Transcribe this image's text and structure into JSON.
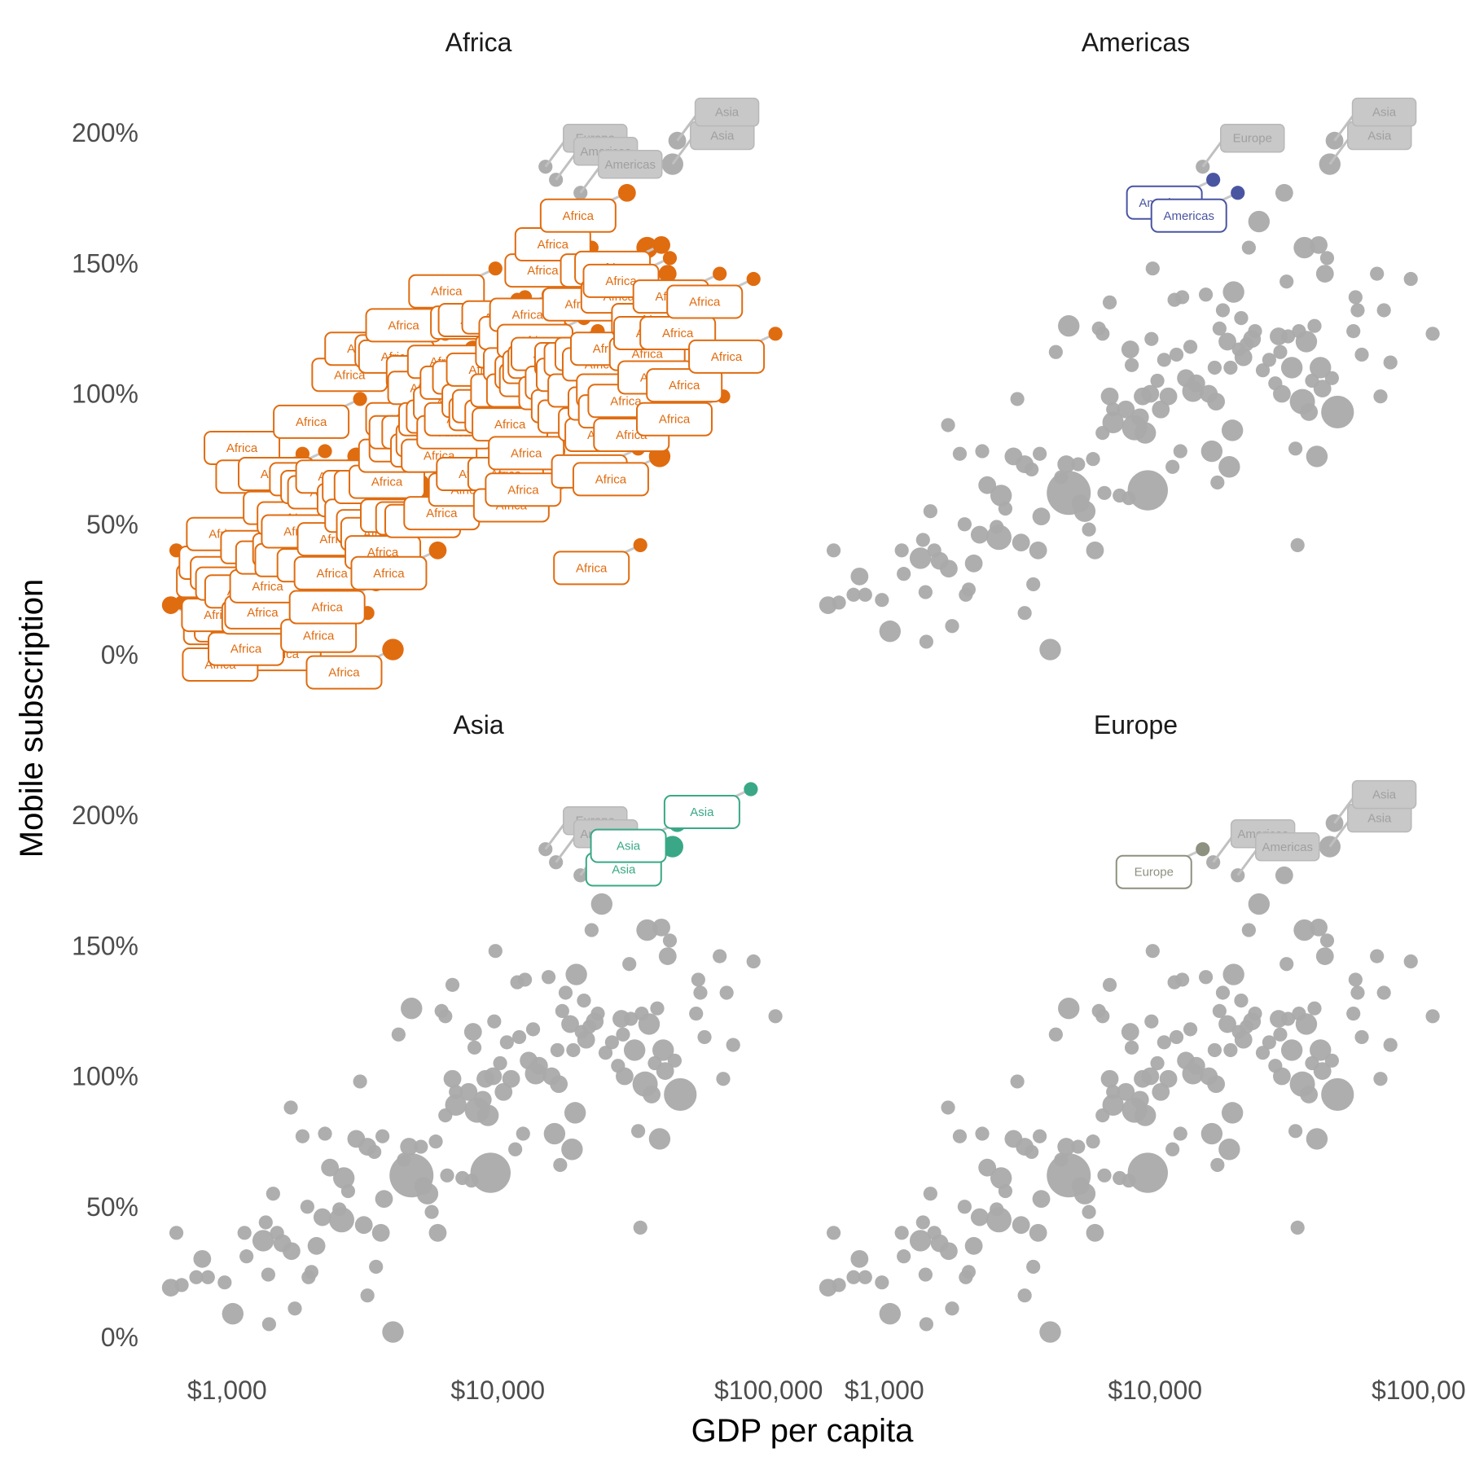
{
  "chart_data": {
    "type": "scatter",
    "title": "",
    "xlabel": "GDP per capita",
    "ylabel": "Mobile subscription",
    "xscale": "log",
    "xlim": [
      600,
      120000
    ],
    "ylim": [
      -5,
      215
    ],
    "x_ticks": [
      {
        "value": 1000,
        "label": "$1,000"
      },
      {
        "value": 10000,
        "label": "$10,000"
      },
      {
        "value": 100000,
        "label": "$100,000"
      }
    ],
    "y_ticks": [
      {
        "value": 0,
        "label": "0%"
      },
      {
        "value": 50,
        "label": "50%"
      },
      {
        "value": 100,
        "label": "100%"
      },
      {
        "value": 150,
        "label": "150%"
      },
      {
        "value": 200,
        "label": "200%"
      }
    ],
    "grid": false,
    "legend": "none",
    "colors": {
      "background_points": "#aaaaaa",
      "label_box_fill": "#c8c8c8",
      "label_box_stroke": "#b8b8b8",
      "label_text_muted": "#a0a0a0",
      "Africa": "#e06c10",
      "Americas": "#4a55a2",
      "Asia": "#3aa886",
      "Europe": "#8d9180"
    },
    "panels": [
      "Africa",
      "Americas",
      "Asia",
      "Europe"
    ],
    "highlight_labels": {
      "Africa": "Africa",
      "Americas": "Americas",
      "Asia": "Asia",
      "Europe": "Europe"
    },
    "points": [
      {
        "x": 620,
        "y": 19,
        "size": 3,
        "region": "Africa"
      },
      {
        "x": 680,
        "y": 20,
        "size": 2,
        "region": "Africa"
      },
      {
        "x": 650,
        "y": 40,
        "size": 2,
        "region": "Africa"
      },
      {
        "x": 770,
        "y": 23,
        "size": 2,
        "region": "Africa"
      },
      {
        "x": 850,
        "y": 23,
        "size": 2,
        "region": "Africa"
      },
      {
        "x": 810,
        "y": 30,
        "size": 3,
        "region": "Africa"
      },
      {
        "x": 980,
        "y": 21,
        "size": 2,
        "region": "Africa"
      },
      {
        "x": 1050,
        "y": 9,
        "size": 4,
        "region": "Africa"
      },
      {
        "x": 1160,
        "y": 40,
        "size": 2,
        "region": "Africa"
      },
      {
        "x": 1180,
        "y": 31,
        "size": 2,
        "region": "Africa"
      },
      {
        "x": 1360,
        "y": 37,
        "size": 4,
        "region": "Africa"
      },
      {
        "x": 1390,
        "y": 44,
        "size": 2,
        "region": "Africa"
      },
      {
        "x": 1420,
        "y": 24,
        "size": 2,
        "region": "Africa"
      },
      {
        "x": 1430,
        "y": 5,
        "size": 2,
        "region": "Africa"
      },
      {
        "x": 1480,
        "y": 55,
        "size": 2,
        "region": "Africa"
      },
      {
        "x": 1530,
        "y": 40,
        "size": 2,
        "region": "Africa"
      },
      {
        "x": 1600,
        "y": 36,
        "size": 3,
        "region": "Africa"
      },
      {
        "x": 1720,
        "y": 88,
        "size": 2,
        "region": "Africa"
      },
      {
        "x": 1730,
        "y": 33,
        "size": 3,
        "region": "Africa"
      },
      {
        "x": 1780,
        "y": 11,
        "size": 2,
        "region": "Africa"
      },
      {
        "x": 1900,
        "y": 77,
        "size": 2,
        "region": "Africa"
      },
      {
        "x": 1980,
        "y": 50,
        "size": 2,
        "region": "Africa"
      },
      {
        "x": 2000,
        "y": 23,
        "size": 2,
        "region": "Africa"
      },
      {
        "x": 2050,
        "y": 25,
        "size": 2,
        "region": "Africa"
      },
      {
        "x": 2140,
        "y": 35,
        "size": 3,
        "region": "Africa"
      },
      {
        "x": 2250,
        "y": 46,
        "size": 3,
        "region": "Africa"
      },
      {
        "x": 2300,
        "y": 78,
        "size": 2,
        "region": "Africa"
      },
      {
        "x": 2400,
        "y": 65,
        "size": 3,
        "region": "Africa"
      },
      {
        "x": 2600,
        "y": 49,
        "size": 2,
        "region": "Africa"
      },
      {
        "x": 2650,
        "y": 45,
        "size": 5,
        "region": "Africa"
      },
      {
        "x": 2700,
        "y": 61,
        "size": 4,
        "region": "Africa"
      },
      {
        "x": 2800,
        "y": 56,
        "size": 2,
        "region": "Africa"
      },
      {
        "x": 3000,
        "y": 76,
        "size": 3,
        "region": "Africa"
      },
      {
        "x": 3100,
        "y": 98,
        "size": 2,
        "region": "Africa"
      },
      {
        "x": 3200,
        "y": 43,
        "size": 3,
        "region": "Africa"
      },
      {
        "x": 3300,
        "y": 73,
        "size": 3,
        "region": "Africa"
      },
      {
        "x": 3300,
        "y": 16,
        "size": 2,
        "region": "Africa"
      },
      {
        "x": 3500,
        "y": 71,
        "size": 2,
        "region": "Africa"
      },
      {
        "x": 3550,
        "y": 27,
        "size": 2,
        "region": "Africa"
      },
      {
        "x": 3700,
        "y": 40,
        "size": 3,
        "region": "Africa"
      },
      {
        "x": 3750,
        "y": 77,
        "size": 2,
        "region": "Africa"
      },
      {
        "x": 3800,
        "y": 53,
        "size": 3,
        "region": "Africa"
      },
      {
        "x": 4100,
        "y": 2,
        "size": 4,
        "region": "Africa"
      },
      {
        "x": 4300,
        "y": 116,
        "size": 2,
        "region": "Africa"
      },
      {
        "x": 4500,
        "y": 68,
        "size": 2,
        "region": "Africa"
      },
      {
        "x": 4700,
        "y": 73,
        "size": 3,
        "region": "Africa"
      },
      {
        "x": 4800,
        "y": 126,
        "size": 4,
        "region": "Africa"
      },
      {
        "x": 4800,
        "y": 62,
        "size": 10,
        "region": "Africa"
      },
      {
        "x": 5200,
        "y": 73,
        "size": 2,
        "region": "Africa"
      },
      {
        "x": 5300,
        "y": 58,
        "size": 3,
        "region": "Africa"
      },
      {
        "x": 5500,
        "y": 55,
        "size": 4,
        "region": "Africa"
      },
      {
        "x": 5700,
        "y": 48,
        "size": 2,
        "region": "Africa"
      },
      {
        "x": 5900,
        "y": 75,
        "size": 2,
        "region": "Africa"
      },
      {
        "x": 6000,
        "y": 40,
        "size": 3,
        "region": "Africa"
      },
      {
        "x": 6200,
        "y": 125,
        "size": 2,
        "region": "Africa"
      },
      {
        "x": 6400,
        "y": 85,
        "size": 2,
        "region": "Africa"
      },
      {
        "x": 6400,
        "y": 123,
        "size": 2,
        "region": "Africa"
      },
      {
        "x": 6500,
        "y": 62,
        "size": 2,
        "region": "Africa"
      },
      {
        "x": 6800,
        "y": 135,
        "size": 2,
        "region": "Africa"
      },
      {
        "x": 6800,
        "y": 99,
        "size": 3,
        "region": "Africa"
      },
      {
        "x": 7000,
        "y": 89,
        "size": 4,
        "region": "Africa"
      },
      {
        "x": 7000,
        "y": 94,
        "size": 2,
        "region": "Africa"
      },
      {
        "x": 7400,
        "y": 61,
        "size": 2,
        "region": "Africa"
      },
      {
        "x": 7800,
        "y": 94,
        "size": 3,
        "region": "Africa"
      },
      {
        "x": 8000,
        "y": 60,
        "size": 2,
        "region": "Africa"
      },
      {
        "x": 8100,
        "y": 117,
        "size": 3,
        "region": "Africa"
      },
      {
        "x": 8200,
        "y": 111,
        "size": 2,
        "region": "Africa"
      },
      {
        "x": 8400,
        "y": 87,
        "size": 5,
        "region": "Africa"
      },
      {
        "x": 8800,
        "y": 91,
        "size": 3,
        "region": "Africa"
      },
      {
        "x": 9000,
        "y": 99,
        "size": 3,
        "region": "Africa"
      },
      {
        "x": 9200,
        "y": 85,
        "size": 4,
        "region": "Africa"
      },
      {
        "x": 9400,
        "y": 63,
        "size": 9,
        "region": "Africa"
      },
      {
        "x": 9600,
        "y": 100,
        "size": 3,
        "region": "Africa"
      },
      {
        "x": 9700,
        "y": 121,
        "size": 2,
        "region": "Africa"
      },
      {
        "x": 9800,
        "y": 148,
        "size": 2,
        "region": "Africa"
      },
      {
        "x": 10200,
        "y": 105,
        "size": 2,
        "region": "Africa"
      },
      {
        "x": 10500,
        "y": 94,
        "size": 3,
        "region": "Africa"
      },
      {
        "x": 10800,
        "y": 113,
        "size": 2,
        "region": "Africa"
      },
      {
        "x": 11200,
        "y": 99,
        "size": 3,
        "region": "Africa"
      },
      {
        "x": 11600,
        "y": 72,
        "size": 2,
        "region": "Africa"
      },
      {
        "x": 11800,
        "y": 136,
        "size": 2,
        "region": "Africa"
      },
      {
        "x": 12000,
        "y": 115,
        "size": 2,
        "region": "Africa"
      },
      {
        "x": 12400,
        "y": 78,
        "size": 2,
        "region": "Africa"
      },
      {
        "x": 12600,
        "y": 137,
        "size": 2,
        "region": "Africa"
      },
      {
        "x": 13000,
        "y": 106,
        "size": 3,
        "region": "Africa"
      },
      {
        "x": 13500,
        "y": 118,
        "size": 2,
        "region": "Africa"
      },
      {
        "x": 13800,
        "y": 101,
        "size": 4,
        "region": "Africa"
      },
      {
        "x": 14200,
        "y": 104,
        "size": 3,
        "region": "Africa"
      },
      {
        "x": 15000,
        "y": 187,
        "size": 2,
        "region": "Europe"
      },
      {
        "x": 15400,
        "y": 138,
        "size": 2,
        "region": "Africa"
      },
      {
        "x": 15800,
        "y": 100,
        "size": 3,
        "region": "Africa"
      },
      {
        "x": 16200,
        "y": 78,
        "size": 4,
        "region": "Africa"
      },
      {
        "x": 16400,
        "y": 182,
        "size": 2,
        "region": "Americas"
      },
      {
        "x": 16600,
        "y": 110,
        "size": 2,
        "region": "Africa"
      },
      {
        "x": 16800,
        "y": 97,
        "size": 3,
        "region": "Africa"
      },
      {
        "x": 17000,
        "y": 66,
        "size": 2,
        "region": "Africa"
      },
      {
        "x": 17300,
        "y": 125,
        "size": 2,
        "region": "Africa"
      },
      {
        "x": 17800,
        "y": 132,
        "size": 2,
        "region": "Africa"
      },
      {
        "x": 18500,
        "y": 120,
        "size": 3,
        "region": "Africa"
      },
      {
        "x": 18800,
        "y": 72,
        "size": 4,
        "region": "Africa"
      },
      {
        "x": 19000,
        "y": 110,
        "size": 2,
        "region": "Africa"
      },
      {
        "x": 19300,
        "y": 86,
        "size": 4,
        "region": "Africa"
      },
      {
        "x": 19500,
        "y": 139,
        "size": 4,
        "region": "Africa"
      },
      {
        "x": 20200,
        "y": 177,
        "size": 2,
        "region": "Americas"
      },
      {
        "x": 20400,
        "y": 117,
        "size": 2,
        "region": "Africa"
      },
      {
        "x": 20800,
        "y": 129,
        "size": 2,
        "region": "Africa"
      },
      {
        "x": 21200,
        "y": 114,
        "size": 3,
        "region": "Africa"
      },
      {
        "x": 21800,
        "y": 119,
        "size": 2,
        "region": "Africa"
      },
      {
        "x": 22200,
        "y": 156,
        "size": 2,
        "region": "Africa"
      },
      {
        "x": 22800,
        "y": 121,
        "size": 3,
        "region": "Africa"
      },
      {
        "x": 23400,
        "y": 124,
        "size": 2,
        "region": "Africa"
      },
      {
        "x": 24200,
        "y": 166,
        "size": 4,
        "region": "Africa"
      },
      {
        "x": 25000,
        "y": 109,
        "size": 2,
        "region": "Africa"
      },
      {
        "x": 26400,
        "y": 113,
        "size": 2,
        "region": "Africa"
      },
      {
        "x": 27800,
        "y": 104,
        "size": 2,
        "region": "Africa"
      },
      {
        "x": 28600,
        "y": 122,
        "size": 3,
        "region": "Africa"
      },
      {
        "x": 29000,
        "y": 116,
        "size": 2,
        "region": "Africa"
      },
      {
        "x": 29400,
        "y": 100,
        "size": 3,
        "region": "Africa"
      },
      {
        "x": 30000,
        "y": 177,
        "size": 3,
        "region": "Africa"
      },
      {
        "x": 30600,
        "y": 143,
        "size": 2,
        "region": "Africa"
      },
      {
        "x": 31000,
        "y": 122,
        "size": 2,
        "region": "Africa"
      },
      {
        "x": 32000,
        "y": 110,
        "size": 4,
        "region": "Africa"
      },
      {
        "x": 33000,
        "y": 79,
        "size": 2,
        "region": "Africa"
      },
      {
        "x": 33600,
        "y": 42,
        "size": 2,
        "region": "Africa"
      },
      {
        "x": 34000,
        "y": 124,
        "size": 2,
        "region": "Africa"
      },
      {
        "x": 35000,
        "y": 97,
        "size": 5,
        "region": "Africa"
      },
      {
        "x": 35600,
        "y": 156,
        "size": 4,
        "region": "Africa"
      },
      {
        "x": 36200,
        "y": 120,
        "size": 4,
        "region": "Africa"
      },
      {
        "x": 37000,
        "y": 93,
        "size": 3,
        "region": "Africa"
      },
      {
        "x": 38000,
        "y": 105,
        "size": 2,
        "region": "Africa"
      },
      {
        "x": 38800,
        "y": 126,
        "size": 2,
        "region": "Africa"
      },
      {
        "x": 39600,
        "y": 76,
        "size": 4,
        "region": "Africa"
      },
      {
        "x": 40200,
        "y": 157,
        "size": 3,
        "region": "Africa"
      },
      {
        "x": 40800,
        "y": 110,
        "size": 4,
        "region": "Africa"
      },
      {
        "x": 41500,
        "y": 102,
        "size": 3,
        "region": "Africa"
      },
      {
        "x": 42400,
        "y": 146,
        "size": 3,
        "region": "Africa"
      },
      {
        "x": 43200,
        "y": 152,
        "size": 2,
        "region": "Africa"
      },
      {
        "x": 44200,
        "y": 188,
        "size": 4,
        "region": "Asia"
      },
      {
        "x": 45000,
        "y": 106,
        "size": 2,
        "region": "Africa"
      },
      {
        "x": 46000,
        "y": 197,
        "size": 3,
        "region": "Asia"
      },
      {
        "x": 47200,
        "y": 93,
        "size": 7,
        "region": "Africa"
      },
      {
        "x": 54000,
        "y": 124,
        "size": 2,
        "region": "Africa"
      },
      {
        "x": 55000,
        "y": 137,
        "size": 2,
        "region": "Africa"
      },
      {
        "x": 56000,
        "y": 132,
        "size": 2,
        "region": "Africa"
      },
      {
        "x": 58000,
        "y": 115,
        "size": 2,
        "region": "Africa"
      },
      {
        "x": 66000,
        "y": 146,
        "size": 2,
        "region": "Africa"
      },
      {
        "x": 68000,
        "y": 99,
        "size": 2,
        "region": "Africa"
      },
      {
        "x": 70000,
        "y": 132,
        "size": 2,
        "region": "Africa"
      },
      {
        "x": 74000,
        "y": 112,
        "size": 2,
        "region": "Africa"
      },
      {
        "x": 86000,
        "y": 210,
        "size": 2,
        "region": "Asia"
      },
      {
        "x": 88000,
        "y": 144,
        "size": 2,
        "region": "Africa"
      },
      {
        "x": 106000,
        "y": 123,
        "size": 2,
        "region": "Africa"
      }
    ]
  }
}
